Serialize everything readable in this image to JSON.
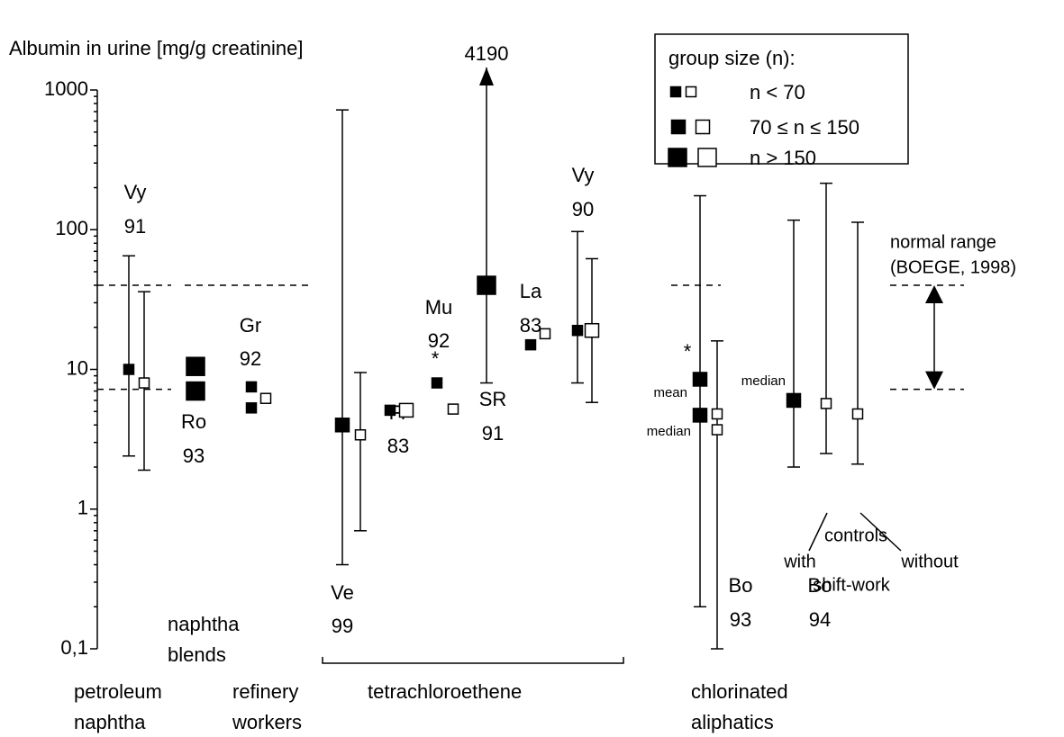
{
  "chart_data": {
    "type": "errorbar",
    "title": "Albumin in urine [mg/g creatinine]",
    "log_scale": true,
    "ylim": [
      0.1,
      1000
    ],
    "yticks": [
      {
        "value": 0.1,
        "label": "0,1"
      },
      1,
      10,
      100,
      1000
    ],
    "legend": {
      "title": "group size (n):",
      "entries": [
        "n < 70",
        "70 ≤ n ≤ 150",
        "n > 150"
      ]
    },
    "groups": [
      {
        "label": "Vy",
        "year": "91",
        "marks": [
          {
            "fill": "filled",
            "size": "small",
            "values": [
              10
            ],
            "range": [
              2.4,
              65
            ]
          },
          {
            "fill": "open",
            "size": "small",
            "values": [
              8
            ],
            "range": [
              1.9,
              36
            ]
          }
        ]
      },
      {
        "label": "Ro",
        "year": "93",
        "marks": [
          {
            "fill": "filled",
            "size": "large",
            "values": [
              10.5,
              7
            ]
          }
        ]
      },
      {
        "label": "Gr",
        "year": "92",
        "marks": [
          {
            "fill": "filled",
            "size": "small",
            "values": [
              7.5,
              5.3
            ]
          },
          {
            "fill": "open",
            "size": "small",
            "values": [
              6.2
            ]
          }
        ]
      },
      {
        "label": "Ve",
        "year": "99",
        "marks": [
          {
            "fill": "filled",
            "size": "medium",
            "values": [
              4
            ],
            "range": [
              0.4,
              720
            ]
          },
          {
            "fill": "open",
            "size": "small",
            "values": [
              3.4
            ],
            "range": [
              0.7,
              9.5
            ]
          }
        ]
      },
      {
        "label": "Fr",
        "year": "83",
        "marks": [
          {
            "fill": "filled",
            "size": "small",
            "values": [
              5.1
            ]
          },
          {
            "fill": "open",
            "size": "medium",
            "values": [
              5.1
            ]
          }
        ]
      },
      {
        "label": "Mu",
        "year": "92",
        "marks": [
          {
            "fill": "filled",
            "size": "small",
            "values": [
              8
            ]
          },
          {
            "fill": "open",
            "size": "small",
            "values": [
              5.2
            ]
          }
        ]
      },
      {
        "label": "SR",
        "year": "91",
        "marks": [
          {
            "fill": "filled",
            "size": "large",
            "values": [
              40
            ],
            "range": [
              8,
              4190
            ]
          }
        ]
      },
      {
        "label": "La",
        "year": "83",
        "marks": [
          {
            "fill": "filled",
            "size": "small",
            "values": [
              15
            ]
          },
          {
            "fill": "open",
            "size": "small",
            "values": [
              18
            ]
          }
        ]
      },
      {
        "label": "Vy",
        "year": "90",
        "marks": [
          {
            "fill": "filled",
            "size": "small",
            "values": [
              19
            ],
            "range": [
              8,
              97
            ]
          },
          {
            "fill": "open",
            "size": "medium",
            "values": [
              19
            ],
            "range": [
              5.8,
              62
            ]
          }
        ]
      },
      {
        "label": "Bo",
        "year": "93",
        "marks": [
          {
            "fill": "filled",
            "size": "medium",
            "values": [
              8.5,
              4.7
            ],
            "range": [
              0.2,
              175
            ]
          },
          {
            "fill": "open",
            "size": "small",
            "values": [
              4.8,
              3.7
            ],
            "range": [
              0.1,
              16
            ]
          }
        ]
      },
      {
        "label": "Bo",
        "year": "94",
        "marks": [
          {
            "fill": "filled",
            "size": "medium",
            "values": [
              6
            ],
            "range": [
              2,
              117
            ]
          },
          {
            "fill": "open",
            "size": "small",
            "values": [
              5.7
            ],
            "range": [
              2.5,
              215
            ]
          },
          {
            "fill": "open",
            "size": "small",
            "values": [
              4.8
            ],
            "range": [
              2.1,
              113
            ]
          }
        ]
      }
    ],
    "normal_range": {
      "label": "normal range",
      "source": "(BOEGE, 1998)",
      "values": [
        7.2,
        40
      ]
    },
    "categories": [
      [
        "petroleum",
        "naphtha"
      ],
      [
        "naphtha",
        "blends"
      ],
      [
        "refinery",
        "workers"
      ],
      [
        "tetrachloroethene"
      ],
      [
        "chlorinated",
        "aliphatics"
      ]
    ],
    "annotations": [
      "*",
      "*",
      "mean",
      "median",
      "median",
      "controls",
      "with",
      "without",
      "shift-work"
    ]
  }
}
